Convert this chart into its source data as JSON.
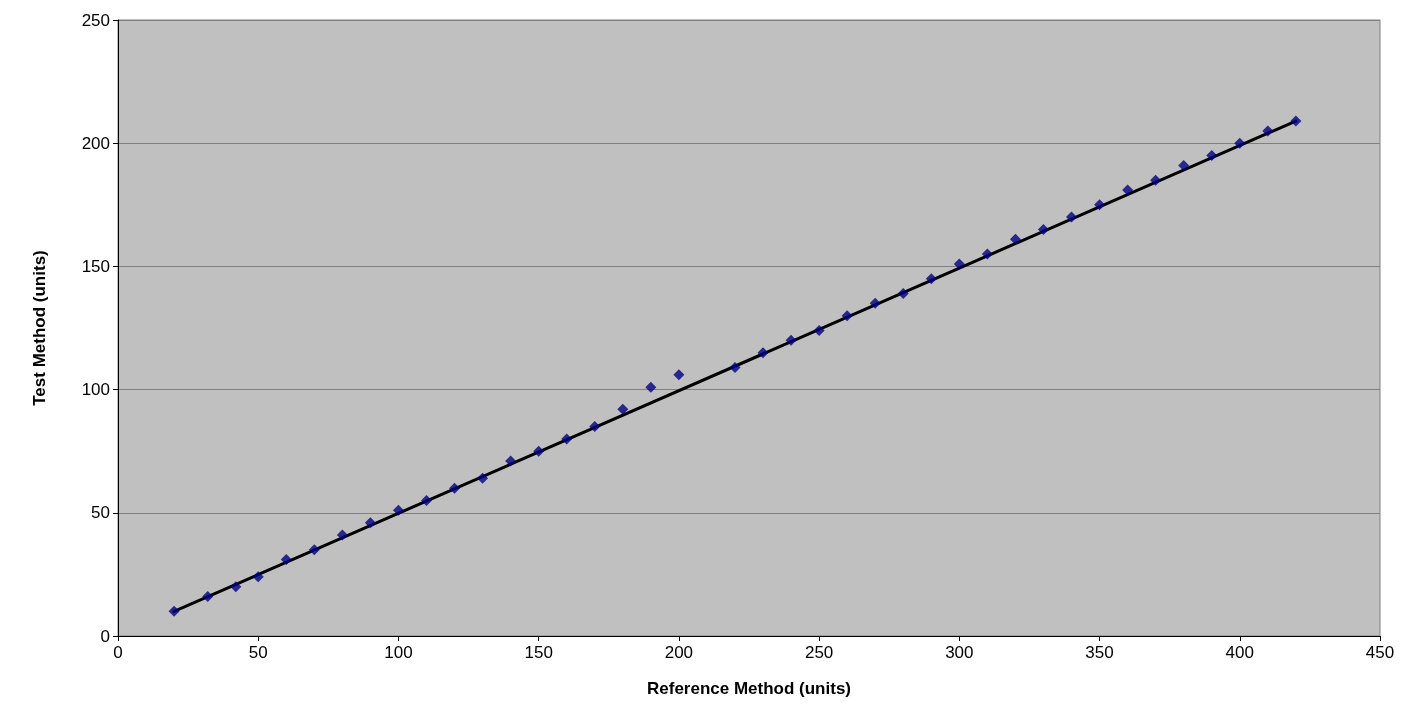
{
  "chart_data": {
    "type": "scatter",
    "xlabel": "Reference Method (units)",
    "ylabel": "Test Method (units)",
    "x": [
      20,
      32,
      42,
      50,
      60,
      70,
      80,
      90,
      100,
      110,
      120,
      130,
      140,
      150,
      160,
      170,
      180,
      190,
      200,
      220,
      230,
      240,
      250,
      260,
      270,
      280,
      290,
      300,
      310,
      320,
      330,
      340,
      350,
      360,
      370,
      380,
      390,
      400,
      410,
      420
    ],
    "series": [
      {
        "color": "#000080",
        "values": [
          10,
          16,
          20,
          24,
          31,
          35,
          41,
          46,
          51,
          55,
          60,
          64,
          71,
          75,
          80,
          85,
          92,
          101,
          106,
          109,
          115,
          120,
          124,
          130,
          135,
          139,
          145,
          151,
          155,
          161,
          165,
          170,
          175,
          181,
          185,
          191,
          195,
          200,
          205,
          209
        ]
      },
      {
        "type": "line",
        "color": "#000000",
        "x": [
          20,
          420
        ],
        "values": [
          10,
          209
        ],
        "marker": "none"
      }
    ],
    "xlim": [
      0,
      450
    ],
    "xticks": [
      0,
      50,
      100,
      150,
      200,
      250,
      300,
      350,
      400,
      450
    ],
    "ylim": [
      0,
      250
    ],
    "yticks": [
      0,
      50,
      100,
      150,
      200,
      250
    ],
    "grid": "y",
    "marker": "diamond"
  }
}
